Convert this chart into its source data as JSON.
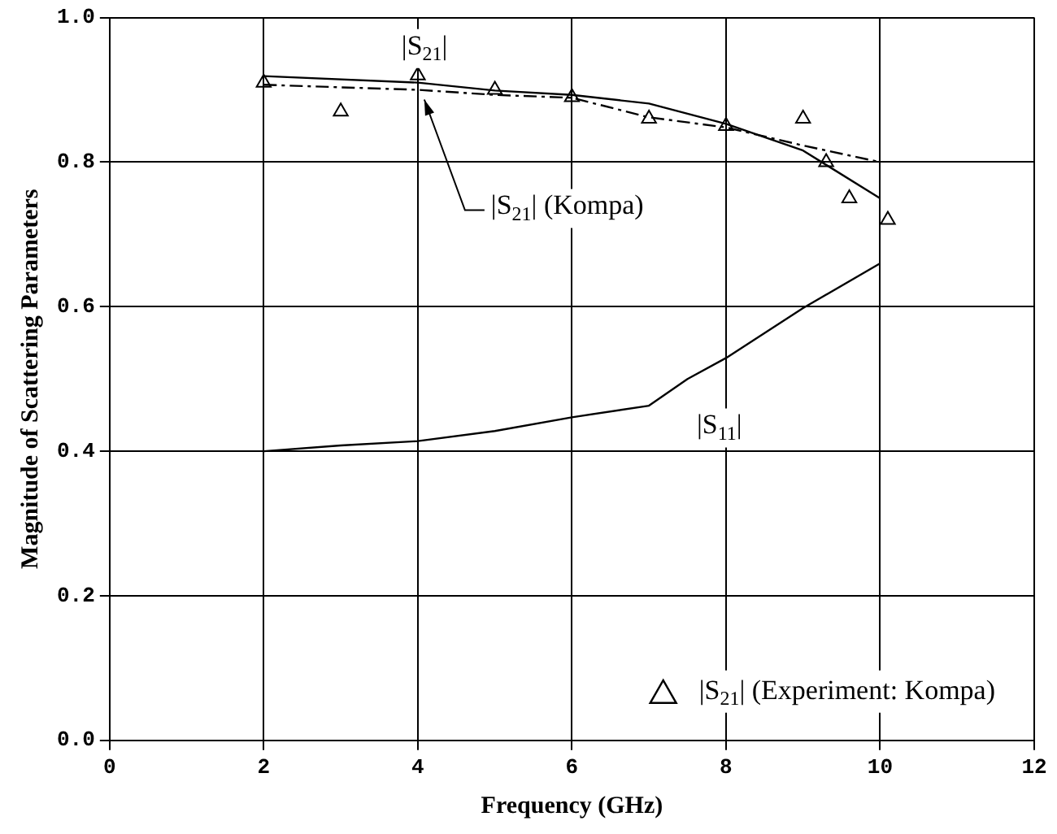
{
  "chart_data": {
    "type": "line",
    "xlabel": "Frequency (GHz)",
    "ylabel": "Magnitude of Scattering Parameters",
    "xlim": [
      0,
      12
    ],
    "xticks": [
      0,
      2,
      4,
      6,
      8,
      10,
      12
    ],
    "ylim": [
      0,
      1
    ],
    "yticks": [
      {
        "value": 0,
        "label": "0.0"
      },
      {
        "value": 0.2,
        "label": "0.2"
      },
      {
        "value": 0.4,
        "label": "0.4"
      },
      {
        "value": 0.6,
        "label": "0.6"
      },
      {
        "value": 0.8,
        "label": "0.8"
      },
      {
        "value": 1,
        "label": "1.0"
      }
    ],
    "grid": true,
    "legend": "bottom right",
    "series": [
      {
        "name": "|S$_{21}$|",
        "line_style": "solid",
        "color": "#000000",
        "x": [
          2,
          4,
          5,
          6,
          7,
          8,
          9,
          10
        ],
        "values": [
          0.919,
          0.91,
          0.899,
          0.893,
          0.881,
          0.853,
          0.816,
          0.75
        ]
      },
      {
        "name": "|S$_{21}$| (Kompa)",
        "line_style": "dashed",
        "color": "#000000",
        "x": [
          2,
          4,
          5,
          6,
          7,
          8,
          9,
          10
        ],
        "values": [
          0.907,
          0.9,
          0.893,
          0.889,
          0.862,
          0.848,
          0.823,
          0.8
        ]
      },
      {
        "name": "|S$_{11}$|",
        "line_style": "solid",
        "color": "#000000",
        "x": [
          2,
          3,
          4,
          5,
          6,
          7,
          7.5,
          8,
          9,
          10
        ],
        "values": [
          0.4,
          0.408,
          0.414,
          0.428,
          0.447,
          0.463,
          0.5,
          0.529,
          0.598,
          0.66
        ]
      },
      {
        "name": "|S$_{21}$| (Experiment: Kompa)",
        "type": "scatter",
        "marker": "triangle",
        "color": "#000000",
        "x": [
          2,
          3,
          4,
          5,
          6,
          7,
          8,
          9,
          9.3,
          9.6,
          10.1
        ],
        "values": [
          0.91,
          0.87,
          0.92,
          0.9,
          0.89,
          0.86,
          0.85,
          0.86,
          0.8,
          0.75,
          0.72
        ]
      }
    ]
  }
}
